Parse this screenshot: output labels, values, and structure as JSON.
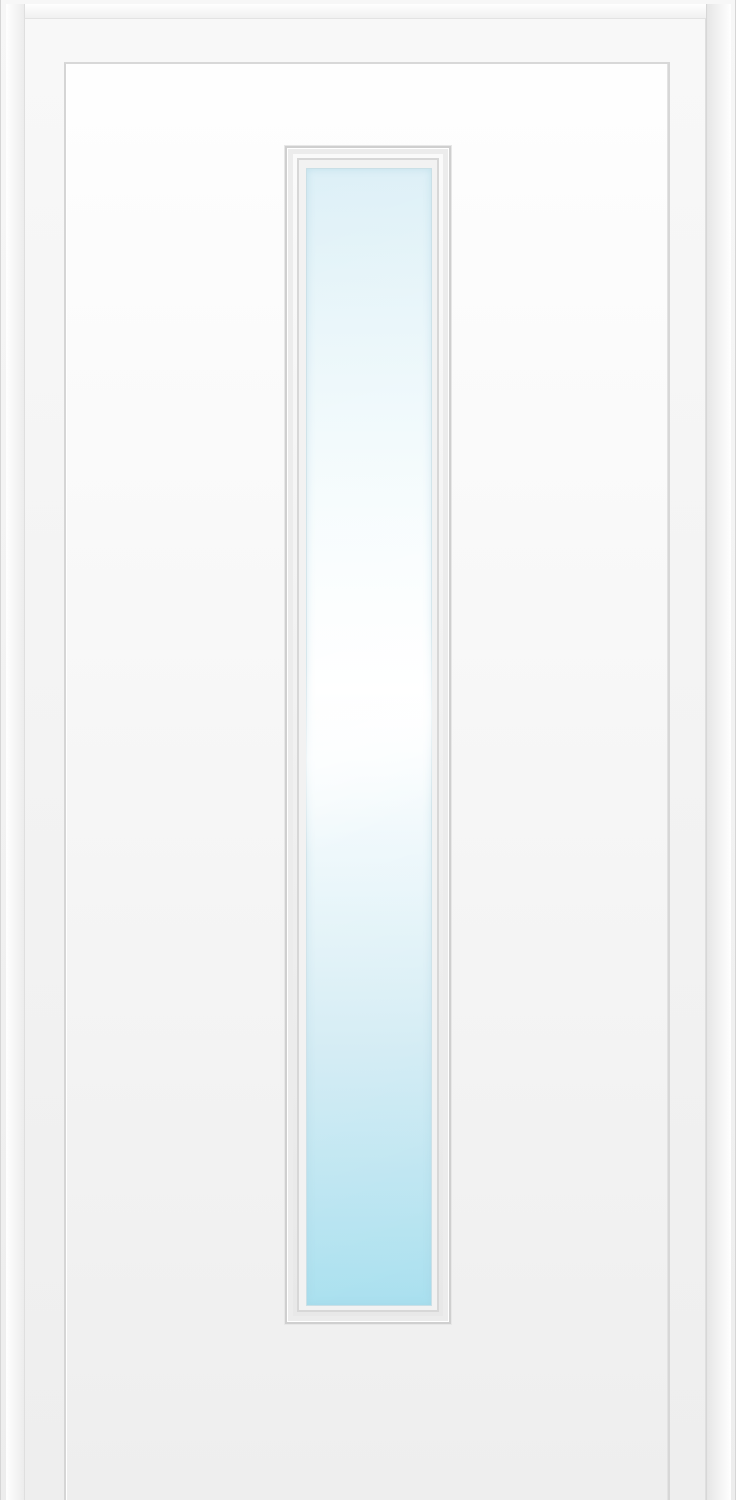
{
  "scene": {
    "type": "door",
    "colors": {
      "frame": "#f3f3f3",
      "door": "#efefef",
      "molding": "#dcdcdc",
      "glass_top": "#ddf0f7",
      "glass_middle": "#ffffff",
      "glass_bottom": "#a9e0ef"
    }
  }
}
